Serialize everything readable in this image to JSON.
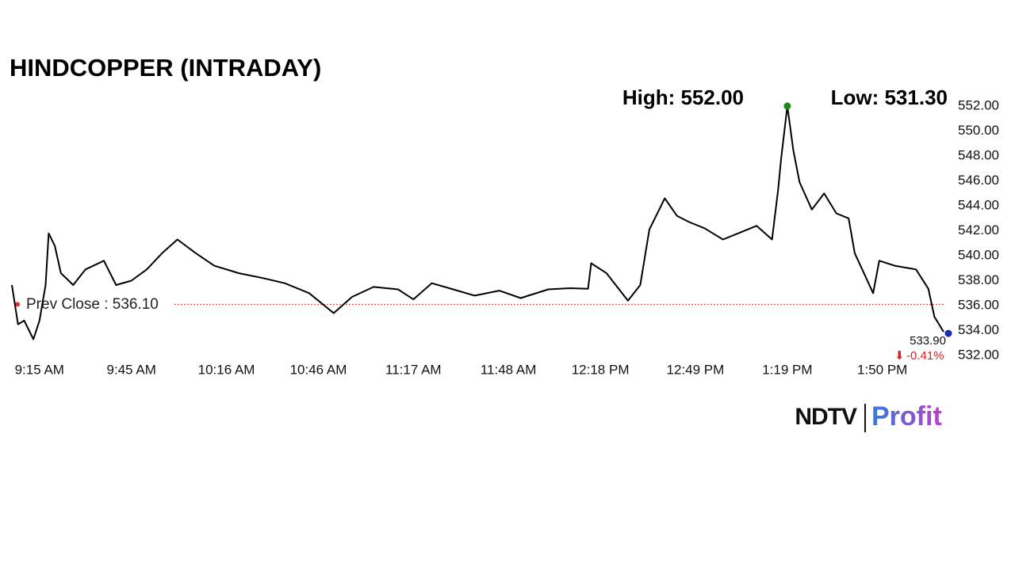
{
  "chart_data": {
    "type": "line",
    "title": "HINDCOPPER (INTRADAY)",
    "high_text": "High: 552.00",
    "low_text": "Low: 531.30",
    "prev_close": 536.1,
    "prev_close_label": "Prev Close : 536.10",
    "last_label": "533.90",
    "change_label": "-0.41%",
    "brand": {
      "left": "NDTV",
      "right": "Profit"
    },
    "x": [
      "9:06 AM",
      "9:08 AM",
      "9:10 AM",
      "9:13 AM",
      "9:15 AM",
      "9:17 AM",
      "9:18 AM",
      "9:20 AM",
      "9:22 AM",
      "9:26 AM",
      "9:30 AM",
      "9:36 AM",
      "9:40 AM",
      "9:45 AM",
      "9:50 AM",
      "9:55 AM",
      "10:00 AM",
      "10:06 AM",
      "10:12 AM",
      "10:20 AM",
      "10:28 AM",
      "10:35 AM",
      "10:43 AM",
      "10:51 AM",
      "10:57 AM",
      "11:04 AM",
      "11:12 AM",
      "11:17 AM",
      "11:23 AM",
      "11:30 AM",
      "11:37 AM",
      "11:45 AM",
      "11:52 AM",
      "12:01 PM",
      "12:08 PM",
      "12:14 PM",
      "12:15 PM",
      "12:20 PM",
      "12:27 PM",
      "12:31 PM",
      "12:34 PM",
      "12:39 PM",
      "12:43 PM",
      "12:47 PM",
      "12:52 PM",
      "12:58 PM",
      "1:03 PM",
      "1:09 PM",
      "1:14 PM",
      "1:16 PM",
      "1:17 PM",
      "1:19 PM",
      "1:21 PM",
      "1:23 PM",
      "1:27 PM",
      "1:31 PM",
      "1:35 PM",
      "1:39 PM",
      "1:41 PM",
      "1:47 PM",
      "1:49 PM",
      "1:54 PM",
      "2:01 PM",
      "2:05 PM",
      "2:07 PM",
      "2:10 PM"
    ],
    "series": [
      {
        "name": "HINDCOPPER",
        "color": "#000000",
        "values": [
          537.65,
          534.5,
          534.8,
          533.3,
          534.8,
          537.65,
          541.8,
          540.8,
          538.6,
          537.65,
          538.9,
          539.6,
          537.65,
          538.0,
          538.9,
          540.2,
          541.3,
          540.2,
          539.2,
          538.6,
          538.2,
          537.8,
          537.0,
          535.4,
          536.7,
          537.5,
          537.3,
          536.5,
          537.8,
          537.3,
          536.8,
          537.2,
          536.6,
          537.3,
          537.4,
          537.35,
          539.4,
          538.6,
          536.4,
          537.65,
          542.1,
          544.6,
          543.2,
          542.7,
          542.2,
          541.3,
          541.8,
          542.4,
          541.3,
          545.3,
          547.8,
          552.0,
          548.4,
          545.9,
          543.7,
          545.0,
          543.4,
          543.0,
          540.2,
          537.0,
          539.6,
          539.2,
          538.9,
          537.35,
          535.1,
          533.9
        ]
      }
    ],
    "xlim": [
      "9:06 AM",
      "2:10 PM"
    ],
    "xticks": [
      "9:15 AM",
      "9:45 AM",
      "10:16 AM",
      "10:46 AM",
      "11:17 AM",
      "11:48 AM",
      "12:18 PM",
      "12:49 PM",
      "1:19 PM",
      "1:50 PM"
    ],
    "ylim": [
      532,
      552
    ],
    "yticks": [
      {
        "value": 532,
        "label": "532.00"
      },
      {
        "value": 534,
        "label": "534.00"
      },
      {
        "value": 536,
        "label": "536.00"
      },
      {
        "value": 538,
        "label": "538.00"
      },
      {
        "value": 540,
        "label": "540.00"
      },
      {
        "value": 542,
        "label": "542.00"
      },
      {
        "value": 544,
        "label": "544.00"
      },
      {
        "value": 546,
        "label": "546.00"
      },
      {
        "value": 548,
        "label": "548.00"
      },
      {
        "value": 550,
        "label": "550.00"
      },
      {
        "value": 552,
        "label": "552.00"
      }
    ],
    "high_color": "#1a8a1a",
    "last_color": "#1a2bb5",
    "prev_close_color": "#e03030",
    "change_color": "#e02020"
  }
}
